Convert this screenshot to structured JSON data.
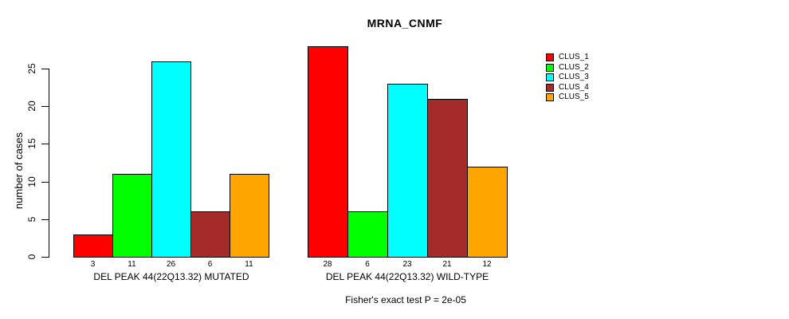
{
  "chart_data": {
    "type": "bar",
    "title": "MRNA_CNMF",
    "ylabel": "number of cases",
    "ylim": [
      0,
      29
    ],
    "yticks": [
      0,
      5,
      10,
      15,
      20,
      25
    ],
    "grid": false,
    "legend_position": "right",
    "categories": [
      "DEL PEAK 44(22Q13.32) MUTATED",
      "DEL PEAK 44(22Q13.32) WILD-TYPE"
    ],
    "series": [
      {
        "name": "CLUS_1",
        "color": "#FF0000",
        "values": [
          3,
          28
        ]
      },
      {
        "name": "CLUS_2",
        "color": "#00FF00",
        "values": [
          11,
          6
        ]
      },
      {
        "name": "CLUS_3",
        "color": "#00FFFF",
        "values": [
          26,
          23
        ]
      },
      {
        "name": "CLUS_4",
        "color": "#A52A2A",
        "values": [
          6,
          21
        ]
      },
      {
        "name": "CLUS_5",
        "color": "#FFA500",
        "values": [
          11,
          12
        ]
      }
    ],
    "show_value_labels": true,
    "annotation": "Fisher's exact test P = 2e-05"
  }
}
